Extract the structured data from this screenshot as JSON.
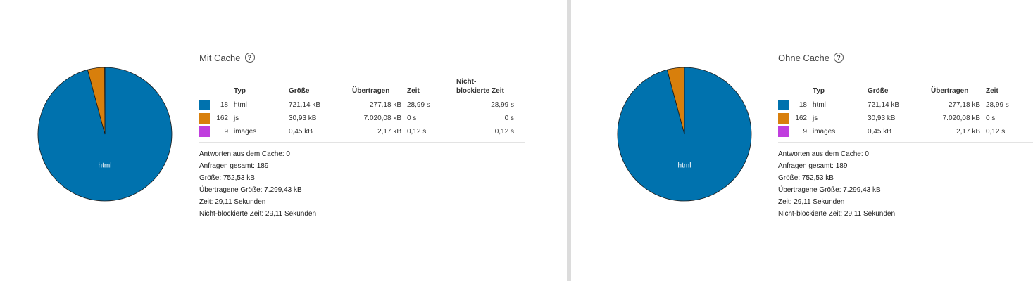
{
  "colors": {
    "html": "#0072AE",
    "js": "#D87F0C",
    "images": "#C03EDE"
  },
  "left": {
    "title": "Mit Cache",
    "help_icon": "?",
    "headers": {
      "type": "Typ",
      "size": "Größe",
      "transferred": "Übertragen",
      "time": "Zeit",
      "nonblocking_1": "Nicht-",
      "nonblocking_2": "blockierte Zeit"
    },
    "rows": [
      {
        "count": "18",
        "type": "html",
        "size": "721,14 kB",
        "transferred": "277,18 kB",
        "time": "28,99 s",
        "nonblocking": "28,99 s"
      },
      {
        "count": "162",
        "type": "js",
        "size": "30,93 kB",
        "transferred": "7.020,08 kB",
        "time": "0 s",
        "nonblocking": "0 s"
      },
      {
        "count": "9",
        "type": "images",
        "size": "0,45 kB",
        "transferred": "2,17 kB",
        "time": "0,12 s",
        "nonblocking": "0,12 s"
      }
    ],
    "summary": [
      "Antworten aus dem Cache: 0",
      "Anfragen gesamt: 189",
      "Größe: 752,53 kB",
      "Übertragene Größe: 7.299,43 kB",
      "Zeit: 29,11 Sekunden",
      "Nicht-blockierte Zeit: 29,11 Sekunden"
    ],
    "pie": {
      "label": "html"
    }
  },
  "right": {
    "title": "Ohne Cache",
    "help_icon": "?",
    "headers": {
      "type": "Typ",
      "size": "Größe",
      "transferred": "Übertragen",
      "time": "Zeit"
    },
    "rows": [
      {
        "count": "18",
        "type": "html",
        "size": "721,14 kB",
        "transferred": "277,18 kB",
        "time": "28,99 s"
      },
      {
        "count": "162",
        "type": "js",
        "size": "30,93 kB",
        "transferred": "7.020,08 kB",
        "time": "0 s"
      },
      {
        "count": "9",
        "type": "images",
        "size": "0,45 kB",
        "transferred": "2,17 kB",
        "time": "0,12 s"
      }
    ],
    "summary": [
      "Antworten aus dem Cache: 0",
      "Anfragen gesamt: 189",
      "Größe: 752,53 kB",
      "Übertragene Größe: 7.299,43 kB",
      "Zeit: 29,11 Sekunden",
      "Nicht-blockierte Zeit: 29,11 Sekunden"
    ],
    "pie": {
      "label": "html"
    }
  },
  "chart_data": [
    {
      "type": "pie",
      "title": "",
      "slices": [
        {
          "name": "html",
          "value": 721.14
        },
        {
          "name": "js",
          "value": 30.93
        },
        {
          "name": "images",
          "value": 0.45
        }
      ],
      "unit": "kB"
    },
    {
      "type": "pie",
      "title": "",
      "slices": [
        {
          "name": "html",
          "value": 721.14
        },
        {
          "name": "js",
          "value": 30.93
        },
        {
          "name": "images",
          "value": 0.45
        }
      ],
      "unit": "kB"
    }
  ]
}
